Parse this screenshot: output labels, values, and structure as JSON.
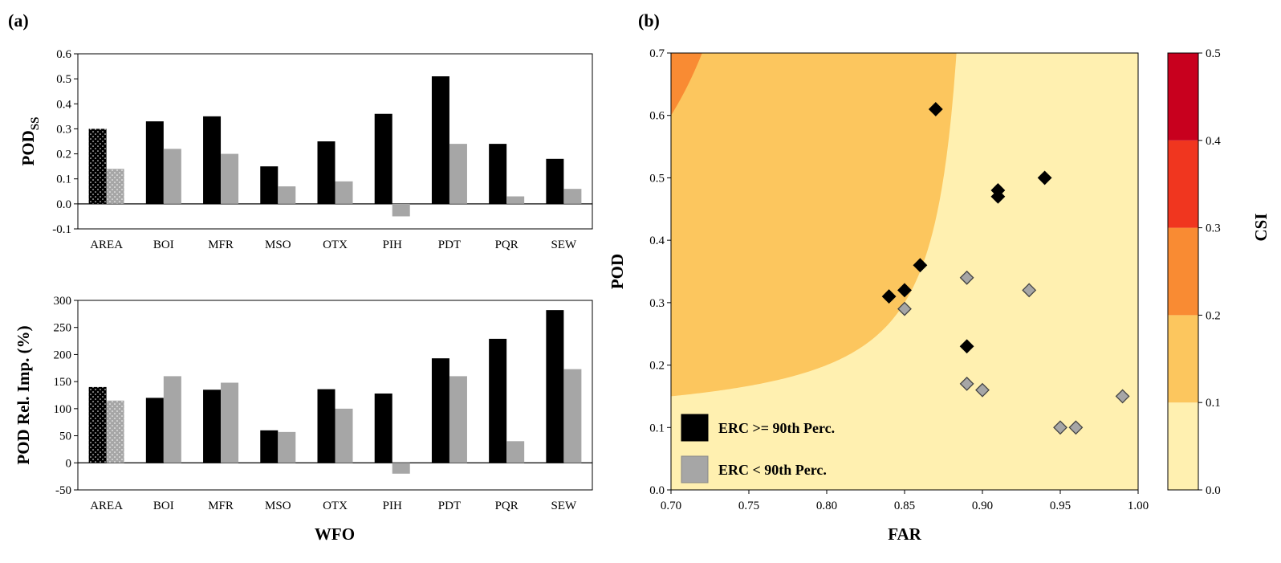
{
  "chart_data": [
    {
      "type": "bar",
      "panel": "(a)",
      "ylabel": "POD",
      "ylabel_subscript": "SS",
      "xlabel": "",
      "ylim": [
        -0.1,
        0.6
      ],
      "yticks": [
        -0.1,
        0,
        0.1,
        0.2,
        0.3,
        0.4,
        0.5,
        0.6
      ],
      "categories": [
        "AREA",
        "BOI",
        "MFR",
        "MSO",
        "OTX",
        "PIH",
        "PDT",
        "PQR",
        "SEW"
      ],
      "series": [
        {
          "name": "ERC >= 90th Perc.",
          "color": "#000000",
          "values": [
            0.3,
            0.33,
            0.35,
            0.15,
            0.25,
            0.36,
            0.51,
            0.24,
            0.18
          ]
        },
        {
          "name": "ERC < 90th Perc.",
          "color": "#a6a6a6",
          "values": [
            0.14,
            0.22,
            0.2,
            0.07,
            0.09,
            -0.05,
            0.24,
            0.03,
            0.06
          ]
        }
      ]
    },
    {
      "type": "bar",
      "ylabel": "POD Rel. Imp. (%)",
      "xlabel": "WFO",
      "ylim": [
        -50,
        300
      ],
      "yticks": [
        -50,
        0,
        50,
        100,
        150,
        200,
        250,
        300
      ],
      "categories": [
        "AREA",
        "BOI",
        "MFR",
        "MSO",
        "OTX",
        "PIH",
        "PDT",
        "PQR",
        "SEW"
      ],
      "series": [
        {
          "name": "ERC >= 90th Perc.",
          "color": "#000000",
          "values": [
            140,
            120,
            135,
            60,
            136,
            128,
            193,
            229,
            282
          ]
        },
        {
          "name": "ERC < 90th Perc.",
          "color": "#a6a6a6",
          "values": [
            115,
            160,
            148,
            57,
            100,
            -20,
            160,
            40,
            173
          ]
        }
      ]
    },
    {
      "type": "scatter",
      "panel": "(b)",
      "xlabel": "FAR",
      "ylabel": "POD",
      "xlim": [
        0.7,
        1.0
      ],
      "ylim": [
        0.0,
        0.7
      ],
      "xticks": [
        "0.70",
        "0.75",
        "0.80",
        "0.85",
        "0.90",
        "0.95",
        "1.00"
      ],
      "yticks": [
        "0.0",
        "0.1",
        "0.2",
        "0.3",
        "0.4",
        "0.5",
        "0.6",
        "0.7"
      ],
      "background": "CSI contours",
      "series": [
        {
          "name": "ERC >= 90th Perc.",
          "color": "#000000",
          "points": [
            [
              0.87,
              0.61
            ],
            [
              0.94,
              0.5
            ],
            [
              0.91,
              0.48
            ],
            [
              0.91,
              0.47
            ],
            [
              0.86,
              0.36
            ],
            [
              0.85,
              0.32
            ],
            [
              0.84,
              0.31
            ],
            [
              0.89,
              0.23
            ]
          ]
        },
        {
          "name": "ERC < 90th Perc.",
          "color": "#a6a6a6",
          "points": [
            [
              0.89,
              0.34
            ],
            [
              0.93,
              0.32
            ],
            [
              0.85,
              0.29
            ],
            [
              0.89,
              0.17
            ],
            [
              0.9,
              0.16
            ],
            [
              0.99,
              0.15
            ],
            [
              0.95,
              0.1
            ],
            [
              0.96,
              0.1
            ]
          ]
        }
      ],
      "legend": [
        "ERC >= 90th Perc.",
        "ERC < 90th Perc."
      ],
      "colorbar": {
        "label": "CSI",
        "ticks": [
          "0.0",
          "0.1",
          "0.2",
          "0.3",
          "0.4",
          "0.5"
        ],
        "bands": [
          {
            "range": [
              0.0,
              0.1
            ],
            "color": "#fff0b0"
          },
          {
            "range": [
              0.1,
              0.2
            ],
            "color": "#fcc65e"
          },
          {
            "range": [
              0.2,
              0.3
            ],
            "color": "#f98b33"
          },
          {
            "range": [
              0.3,
              0.4
            ],
            "color": "#f0361f"
          },
          {
            "range": [
              0.4,
              0.5
            ],
            "color": "#c8001e"
          }
        ]
      }
    }
  ]
}
